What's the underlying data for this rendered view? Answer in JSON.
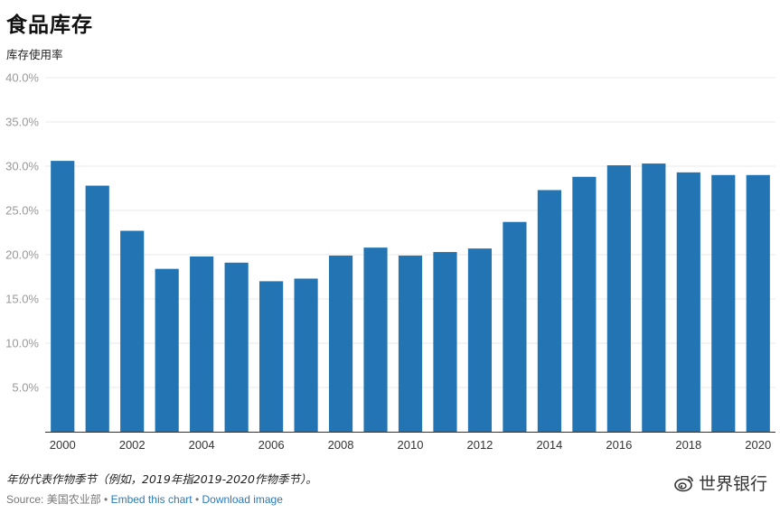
{
  "header": {
    "title": "食品库存",
    "subtitle": "库存使用率"
  },
  "chart_data": {
    "type": "bar",
    "title": "食品库存",
    "ylabel": "库存使用率",
    "xlabel": "",
    "ylim": [
      0,
      40
    ],
    "y_ticks": [
      "5.0%",
      "10.0%",
      "15.0%",
      "20.0%",
      "25.0%",
      "30.0%",
      "35.0%",
      "40.0%"
    ],
    "y_tick_values": [
      5,
      10,
      15,
      20,
      25,
      30,
      35,
      40
    ],
    "categories": [
      "2000",
      "2001",
      "2002",
      "2003",
      "2004",
      "2005",
      "2006",
      "2007",
      "2008",
      "2009",
      "2010",
      "2011",
      "2012",
      "2013",
      "2014",
      "2015",
      "2016",
      "2017",
      "2018",
      "2019",
      "2020"
    ],
    "x_tick_labels": [
      "2000",
      "2002",
      "2004",
      "2006",
      "2008",
      "2010",
      "2012",
      "2014",
      "2016",
      "2018",
      "2020"
    ],
    "values": [
      30.6,
      27.8,
      22.7,
      18.4,
      19.8,
      19.1,
      17.0,
      17.3,
      19.9,
      20.8,
      19.9,
      20.3,
      20.7,
      23.7,
      27.3,
      28.8,
      30.1,
      30.3,
      29.3,
      29.0,
      29.0
    ],
    "bar_color": "#2274b3",
    "grid": true,
    "legend": "none"
  },
  "footer": {
    "note": "年份代表作物季节（例如，2019年指2019-2020作物季节）。",
    "source_prefix": "Source: 美国农业部",
    "separator": " • ",
    "embed_link": "Embed this chart",
    "download_link": "Download image"
  },
  "watermark": {
    "text": "世界银行",
    "icon": "weibo-logo-icon"
  }
}
